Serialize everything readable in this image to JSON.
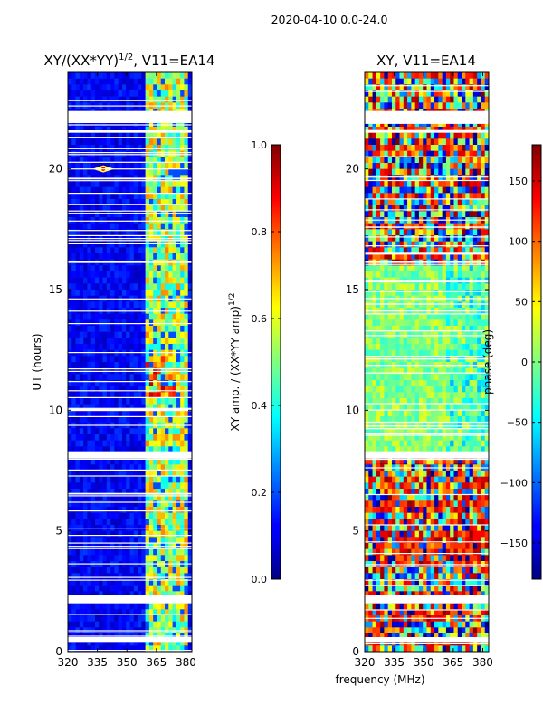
{
  "figure": {
    "suptitle": "2020-04-10 0.0-24.0",
    "xlabel": "frequency (MHz)",
    "ylabel": "UT (hours)"
  },
  "chart_data": [
    {
      "type": "heatmap",
      "title": "XY/(XX*YY)",
      "title_sup": "1/2",
      "title_suffix": ", V11=EA14",
      "xlim": [
        320,
        383
      ],
      "ylim": [
        0,
        24
      ],
      "xticks": [
        320,
        335,
        350,
        365,
        380
      ],
      "yticks": [
        0,
        5,
        10,
        15,
        20
      ],
      "colorbar": {
        "label": "XY amp. / (XX*YY amp)",
        "label_sup": "1/2",
        "range": [
          0.0,
          1.0
        ],
        "ticks": [
          "0.0",
          "0.2",
          "0.4",
          "0.6",
          "0.8",
          "1.0"
        ],
        "tick_values": [
          0.0,
          0.2,
          0.4,
          0.6,
          0.8,
          1.0
        ],
        "colormap": "jet"
      },
      "flagged_bands_hours": [
        [
          21.9,
          22.4
        ],
        [
          21.5,
          21.6
        ],
        [
          16.1,
          16.2
        ],
        [
          8.0,
          8.3
        ],
        [
          2.0,
          2.35
        ],
        [
          0.4,
          0.6
        ]
      ],
      "bright_freq_band_MHz": [
        359,
        381
      ],
      "hotspot": {
        "freq": 338,
        "ut": 20.0
      }
    },
    {
      "type": "heatmap",
      "title": "XY, V11=EA14",
      "xlim": [
        320,
        383
      ],
      "ylim": [
        0,
        24
      ],
      "xticks": [
        320,
        335,
        350,
        365,
        380
      ],
      "yticks": [
        0,
        5,
        10,
        15,
        20
      ],
      "colorbar": {
        "label": "phase (deg)",
        "range": [
          -180,
          180
        ],
        "ticks": [
          "150",
          "100",
          "50",
          "0",
          "−50",
          "−100",
          "−150"
        ],
        "tick_values": [
          150,
          100,
          50,
          0,
          -50,
          -100,
          -150
        ],
        "colormap": "jet"
      },
      "flagged_bands_hours": [
        [
          21.9,
          22.4
        ],
        [
          21.5,
          21.6
        ],
        [
          16.1,
          16.2
        ],
        [
          8.0,
          8.3
        ],
        [
          2.0,
          2.35
        ],
        [
          0.4,
          0.6
        ]
      ]
    }
  ]
}
